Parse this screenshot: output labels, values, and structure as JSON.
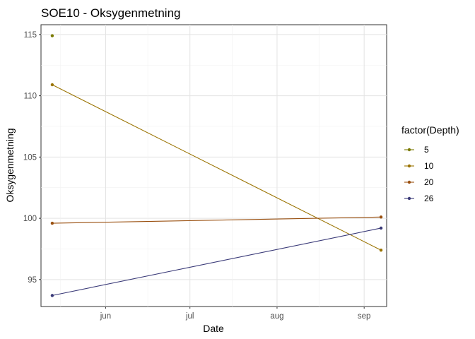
{
  "chart_data": {
    "type": "line",
    "title": "SOE10  -  Oksygenmetning",
    "xlabel": "Date",
    "ylabel": "Oksygenmetning",
    "x_tick_labels": [
      {
        "label": "jun",
        "date": "2020-06-01"
      },
      {
        "label": "jul",
        "date": "2020-07-01"
      },
      {
        "label": "aug",
        "date": "2020-08-01"
      },
      {
        "label": "sep",
        "date": "2020-09-01"
      }
    ],
    "y_ticks": [
      95,
      100,
      105,
      110,
      115
    ],
    "xlim": [
      "2020-05-09",
      "2020-09-09"
    ],
    "ylim": [
      92.8,
      115.8
    ],
    "grid": true,
    "legend": {
      "title": "factor(Depth)",
      "placement": "right"
    },
    "series": [
      {
        "name": "5",
        "color": "#7a7a00",
        "points": [
          {
            "x": "2020-05-13",
            "y": 114.9
          }
        ]
      },
      {
        "name": "10",
        "color": "#9a7300",
        "points": [
          {
            "x": "2020-05-13",
            "y": 110.9
          },
          {
            "x": "2020-09-07",
            "y": 97.4
          }
        ]
      },
      {
        "name": "20",
        "color": "#9a5010",
        "points": [
          {
            "x": "2020-05-13",
            "y": 99.6
          },
          {
            "x": "2020-09-07",
            "y": 100.1
          }
        ]
      },
      {
        "name": "26",
        "color": "#3a3a78",
        "points": [
          {
            "x": "2020-05-13",
            "y": 93.7
          },
          {
            "x": "2020-09-07",
            "y": 99.2
          }
        ]
      }
    ]
  }
}
